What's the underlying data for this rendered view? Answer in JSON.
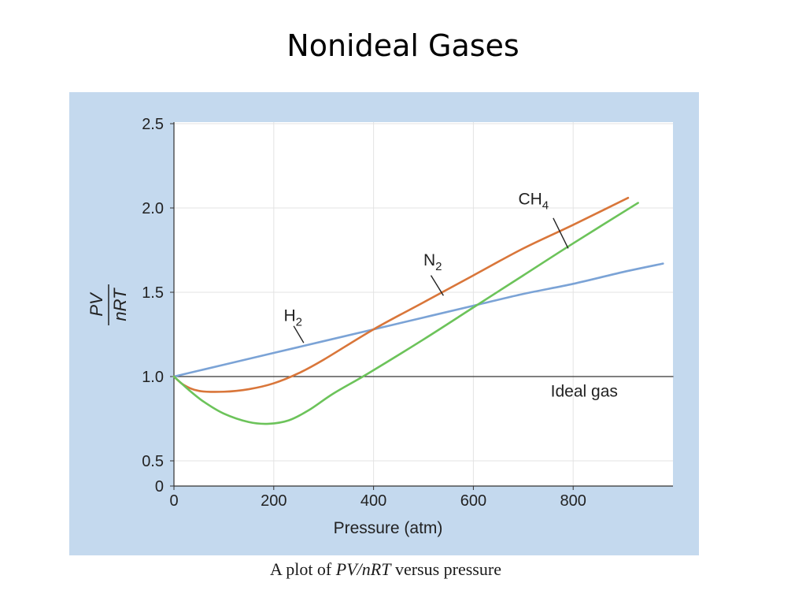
{
  "slide": {
    "title": "Nonideal Gases",
    "caption_prefix": "A plot of ",
    "caption_math": "PV/nRT",
    "caption_suffix": " versus pressure"
  },
  "colors": {
    "panel_background": "#c4d9ee",
    "plot_background": "#ffffff",
    "grid": "#e3e3e3",
    "H2": "#7ba3d6",
    "N2": "#d9763a",
    "CH4": "#6cc35a",
    "ideal": "#333333"
  },
  "chart_data": {
    "type": "line",
    "xlabel": "Pressure (atm)",
    "ylabel_numerator": "PV",
    "ylabel_denominator": "nRT",
    "xlim": [
      0,
      1000
    ],
    "ylim": [
      0,
      2.5
    ],
    "x_ticks": [
      0,
      200,
      400,
      600,
      800
    ],
    "x_tick_labels": [
      "0",
      "200",
      "400",
      "600",
      "800"
    ],
    "y_ticks": [
      0,
      0.5,
      1.0,
      1.5,
      2.0,
      2.5
    ],
    "y_tick_labels": [
      "0",
      "0.5",
      "1.0",
      "1.5",
      "2.0",
      "2.5"
    ],
    "grid": true,
    "series": [
      {
        "name": "H2",
        "label_main": "H",
        "label_sub": "2",
        "color_key": "H2",
        "x": [
          0,
          100,
          200,
          300,
          400,
          500,
          600,
          700,
          800,
          900,
          980
        ],
        "y": [
          1.0,
          1.07,
          1.14,
          1.21,
          1.28,
          1.35,
          1.42,
          1.49,
          1.55,
          1.62,
          1.67
        ]
      },
      {
        "name": "N2",
        "label_main": "N",
        "label_sub": "2",
        "color_key": "N2",
        "x": [
          0,
          20,
          50,
          100,
          150,
          200,
          250,
          300,
          400,
          500,
          600,
          700,
          800,
          910
        ],
        "y": [
          1.0,
          0.95,
          0.915,
          0.91,
          0.925,
          0.96,
          1.02,
          1.1,
          1.28,
          1.44,
          1.6,
          1.76,
          1.9,
          2.06
        ]
      },
      {
        "name": "CH4",
        "label_main": "CH",
        "label_sub": "4",
        "color_key": "CH4",
        "x": [
          0,
          30,
          60,
          100,
          150,
          190,
          230,
          270,
          320,
          390,
          500,
          600,
          700,
          800,
          930
        ],
        "y": [
          1.0,
          0.92,
          0.85,
          0.78,
          0.73,
          0.72,
          0.74,
          0.8,
          0.9,
          1.02,
          1.22,
          1.41,
          1.6,
          1.79,
          2.03
        ]
      },
      {
        "name": "Ideal gas",
        "color_key": "ideal",
        "x": [
          0,
          1000
        ],
        "y": [
          1.0,
          1.0
        ]
      }
    ],
    "annotations": [
      {
        "series": "H2",
        "text_x": 220,
        "text_y": 1.33,
        "anchor_x": 260,
        "anchor_y": 1.2,
        "leader_x": 240,
        "leader_y": 1.3
      },
      {
        "series": "N2",
        "text_x": 500,
        "text_y": 1.66,
        "anchor_x": 540,
        "anchor_y": 1.48,
        "leader_x": 515,
        "leader_y": 1.6
      },
      {
        "series": "CH4",
        "text_x": 690,
        "text_y": 2.02,
        "anchor_x": 790,
        "anchor_y": 1.76,
        "leader_x": 760,
        "leader_y": 1.94
      },
      {
        "series": "Ideal gas",
        "text": "Ideal gas",
        "text_x": 755,
        "text_y": 0.88
      }
    ]
  }
}
